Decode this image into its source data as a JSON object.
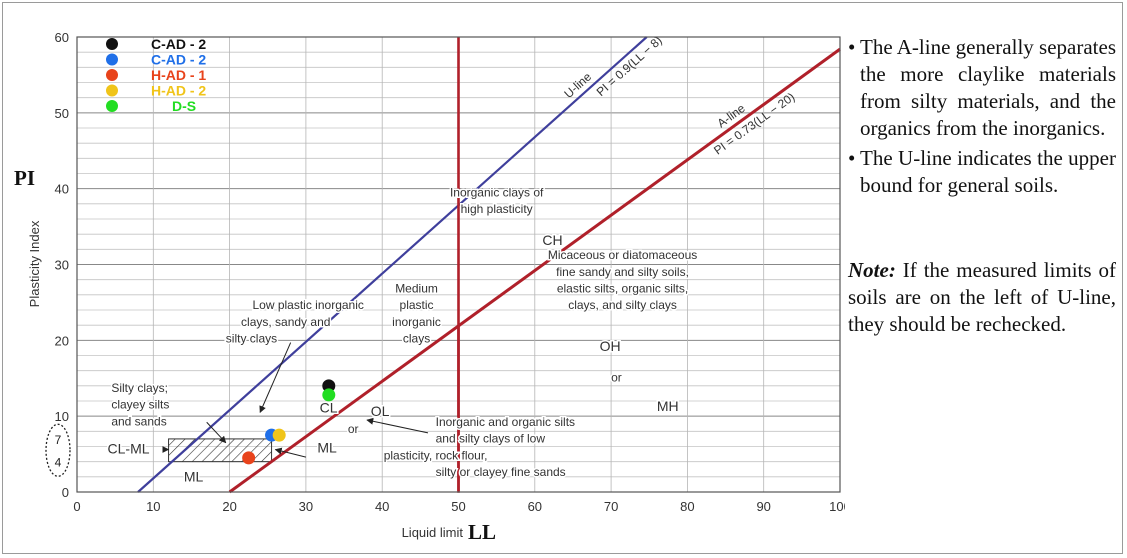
{
  "chart_data": {
    "type": "scatter",
    "xlabel": "Liquid limit",
    "ylabel": "Plasticity Index",
    "x_axis_title": "LL",
    "y_axis_title": "PI",
    "xlim": [
      0,
      100
    ],
    "ylim": [
      0,
      60
    ],
    "x_ticks": [
      0,
      10,
      20,
      30,
      40,
      50,
      60,
      70,
      80,
      90,
      100
    ],
    "y_ticks": [
      0,
      10,
      20,
      30,
      40,
      50,
      60
    ],
    "extra_y_ticks": [
      "7",
      "4"
    ],
    "grid": true,
    "legend_position": "top-left",
    "series": [
      {
        "name": "C-AD - 2",
        "color": "#111111",
        "label_color": "#111111",
        "x": [
          33
        ],
        "y": [
          14
        ]
      },
      {
        "name": "C-AD - 2",
        "color": "#1f6fe8",
        "label_color": "#1f6fe8",
        "x": [
          25.5
        ],
        "y": [
          7.5
        ]
      },
      {
        "name": "H-AD - 1",
        "color": "#e8431b",
        "label_color": "#e8431b",
        "x": [
          22.5
        ],
        "y": [
          4.5
        ]
      },
      {
        "name": "H-AD - 2",
        "color": "#f0c419",
        "label_color": "#f0c419",
        "x": [
          26.5
        ],
        "y": [
          7.5
        ]
      },
      {
        "name": "D-S",
        "color": "#22dd22",
        "label_color": "#22dd22",
        "x": [
          33
        ],
        "y": [
          12.8
        ]
      }
    ],
    "lines": [
      {
        "label": "U-line",
        "equation": "PI = 0.9(LL − 8)",
        "color": "#3f3f9c"
      },
      {
        "label": "A-line",
        "equation": "PI = 0.73(LL − 20)",
        "color": "#b0202a"
      }
    ],
    "vertical_line": {
      "x": 50,
      "color": "#b0202a"
    },
    "hatched_zone": {
      "ll": [
        12,
        25.5
      ],
      "pi": [
        4,
        7
      ]
    },
    "region_labels": [
      {
        "text": "Inorganic clays of",
        "x": 55,
        "y": 39
      },
      {
        "text": "high plasticity",
        "x": 55,
        "y": 36.8
      },
      {
        "text": "CH",
        "x": 61,
        "y": 32.6
      },
      {
        "text": "Micaceous or diatomaceous",
        "x": 71.5,
        "y": 30.7
      },
      {
        "text": "fine sandy and silty soils,",
        "x": 71.5,
        "y": 28.5
      },
      {
        "text": "elastic silts, organic silts,",
        "x": 71.5,
        "y": 26.3
      },
      {
        "text": "clays, and silty clays",
        "x": 71.5,
        "y": 24.1
      },
      {
        "text": "OH",
        "x": 68.5,
        "y": 18.6
      },
      {
        "text": "or",
        "x": 70,
        "y": 14.6
      },
      {
        "text": "MH",
        "x": 76,
        "y": 10.7
      },
      {
        "text": "Medium",
        "x": 44.5,
        "y": 26.3
      },
      {
        "text": "plastic",
        "x": 44.5,
        "y": 24.1
      },
      {
        "text": "inorganic",
        "x": 44.5,
        "y": 21.9
      },
      {
        "text": "clays",
        "x": 44.5,
        "y": 19.7
      },
      {
        "text": "Low plastic inorganic",
        "x": 23,
        "y": 24.1
      },
      {
        "text": "clays, sandy and",
        "x": 21.5,
        "y": 21.9
      },
      {
        "text": "silty clays",
        "x": 19.5,
        "y": 19.7
      },
      {
        "text": "Silty clays;",
        "x": 4.5,
        "y": 13.2
      },
      {
        "text": "clayey silts",
        "x": 4.5,
        "y": 11
      },
      {
        "text": "and sands",
        "x": 4.5,
        "y": 8.8
      },
      {
        "text": "CL",
        "x": 31.8,
        "y": 10.5
      },
      {
        "text": "OL",
        "x": 38.5,
        "y": 10
      },
      {
        "text": "or",
        "x": 35.5,
        "y": 7.8
      },
      {
        "text": "ML",
        "x": 31.5,
        "y": 5.2
      },
      {
        "text": "CL-ML",
        "x": 4,
        "y": 5.1
      },
      {
        "text": "ML",
        "x": 14,
        "y": 1.4
      },
      {
        "text": "Inorganic and organic silts",
        "x": 47,
        "y": 8.7
      },
      {
        "text": "and silty clays of low",
        "x": 47,
        "y": 6.5
      },
      {
        "text": "plasticity, rock flour,",
        "x": 47,
        "y": 4.3
      },
      {
        "text": "silty or clayey fine sands",
        "x": 47,
        "y": 2.1
      }
    ]
  },
  "notes": {
    "bullet_1": "The A-line generally separates the more claylike materials from silty materials, and the organics from the inorganics.",
    "bullet_2": "The U-line indicates the upper bound for general soils.",
    "note_label": "Note:",
    "note_text": " If the measured limits of soils are on the left of U-line, they should be rechecked."
  }
}
